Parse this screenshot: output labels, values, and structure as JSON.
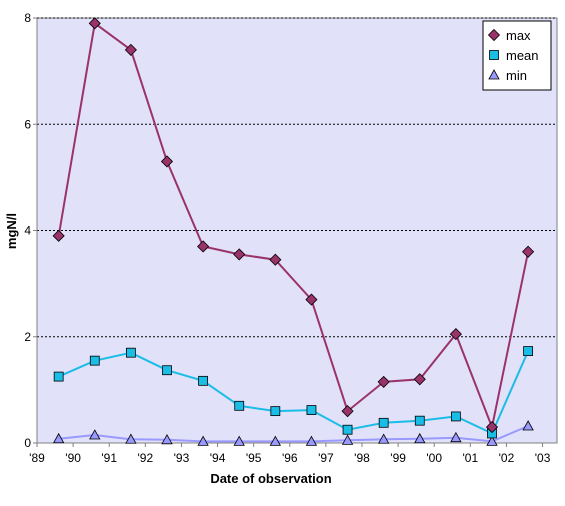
{
  "chart_data": {
    "type": "line",
    "xlabel": "Date of observation",
    "ylabel": "mgN/l",
    "ylim": [
      0,
      8
    ],
    "yticks": [
      0,
      2,
      4,
      6,
      8
    ],
    "xlim": [
      1989,
      2003.4
    ],
    "xticks": [
      1989,
      1990,
      1991,
      1992,
      1993,
      1994,
      1995,
      1996,
      1997,
      1998,
      1999,
      2000,
      2001,
      2002,
      2003
    ],
    "xtick_labels": [
      "'89",
      "'90",
      "'91",
      "'92",
      "'93",
      "'94",
      "'95",
      "'96",
      "'97",
      "'98",
      "'99",
      "'00",
      "'01",
      "'02",
      "'03"
    ],
    "grid": "horizontal dotted",
    "legend": "top-right",
    "x": [
      1989.6,
      1990.6,
      1991.6,
      1992.6,
      1993.6,
      1994.6,
      1995.6,
      1996.6,
      1997.6,
      1998.6,
      1999.6,
      2000.6,
      2001.6,
      2002.6
    ],
    "series": [
      {
        "name": "max",
        "color": "#99336A",
        "marker": "diamond",
        "values": [
          3.9,
          7.9,
          7.4,
          5.3,
          3.7,
          3.55,
          3.45,
          2.7,
          0.6,
          1.15,
          1.2,
          2.05,
          0.3,
          3.6
        ]
      },
      {
        "name": "mean",
        "color": "#19BDE6",
        "marker": "square",
        "values": [
          1.25,
          1.55,
          1.7,
          1.37,
          1.17,
          0.7,
          0.6,
          0.62,
          0.25,
          0.38,
          0.42,
          0.5,
          0.18,
          1.73
        ]
      },
      {
        "name": "min",
        "color": "#9999FF",
        "marker": "triangle",
        "values": [
          0.08,
          0.15,
          0.07,
          0.06,
          0.03,
          0.03,
          0.03,
          0.03,
          0.05,
          0.07,
          0.08,
          0.1,
          0.03,
          0.32
        ]
      }
    ]
  }
}
